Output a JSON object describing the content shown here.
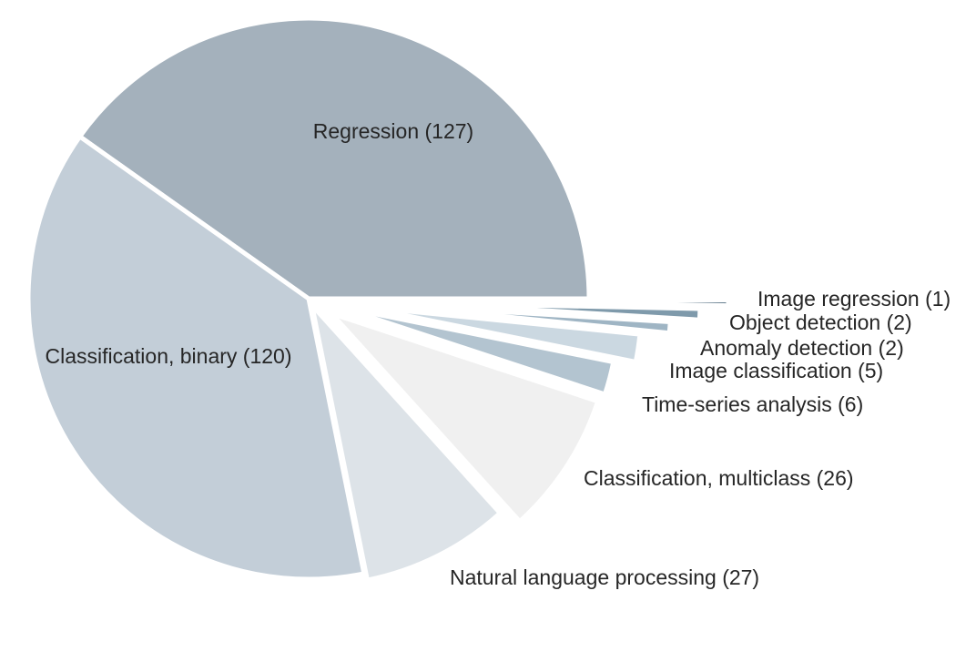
{
  "chart_data": {
    "type": "pie",
    "title": "",
    "slices": [
      {
        "label": "Regression (127)",
        "category": "Regression",
        "value": 127,
        "color": "#a4b1bc"
      },
      {
        "label": "Classification, binary (120)",
        "category": "Classification, binary",
        "value": 120,
        "color": "#c3ced8"
      },
      {
        "label": "Natural language processing (27)",
        "category": "Natural language processing",
        "value": 27,
        "color": "#dde3e8"
      },
      {
        "label": "Classification, multiclass (26)",
        "category": "Classification, multiclass",
        "value": 26,
        "color": "#f0f0f0"
      },
      {
        "label": "Time-series analysis (6)",
        "category": "Time-series analysis",
        "value": 6,
        "color": "#b3c4d0"
      },
      {
        "label": "Image classification (5)",
        "category": "Image classification",
        "value": 5,
        "color": "#cbd8e1"
      },
      {
        "label": "Anomaly detection (2)",
        "category": "Anomaly detection",
        "value": 2,
        "color": "#9fb5c4"
      },
      {
        "label": "Object detection (2)",
        "category": "Object detection",
        "value": 2,
        "color": "#7f9aab"
      },
      {
        "label": "Image regression (1)",
        "category": "Image regression",
        "value": 1,
        "color": "#677f90"
      }
    ]
  }
}
